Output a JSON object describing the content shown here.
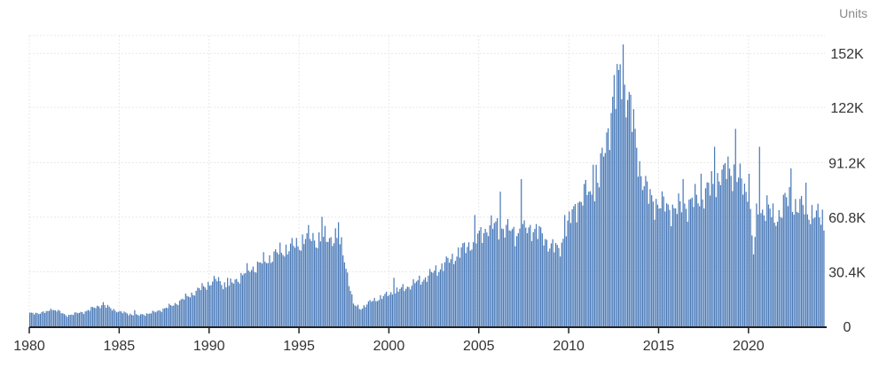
{
  "chart_data": {
    "type": "bar",
    "title": "",
    "units_label": "Units",
    "frequency": "monthly",
    "xlim": [
      "1980-01",
      "2024-03"
    ],
    "ylim": [
      0,
      162000
    ],
    "x_ticks": [
      "1980",
      "1985",
      "1990",
      "1995",
      "2000",
      "2005",
      "2010",
      "2015",
      "2020"
    ],
    "y_ticks": [
      {
        "value": 0,
        "label": "0"
      },
      {
        "value": 30400,
        "label": "30.4K"
      },
      {
        "value": 60800,
        "label": "60.8K"
      },
      {
        "value": 91200,
        "label": "91.2K"
      },
      {
        "value": 122000,
        "label": "122K"
      },
      {
        "value": 152000,
        "label": "152K"
      }
    ],
    "grid": true,
    "y_axis_side": "right",
    "series": [
      {
        "color": "#4a7ab9",
        "points": [
          [
            "1980-01",
            7000
          ],
          [
            "1981-01",
            8000
          ],
          [
            "1981-06",
            9500
          ],
          [
            "1982-01",
            6000
          ],
          [
            "1983-01",
            8000
          ],
          [
            "1984-01",
            12000
          ],
          [
            "1985-01",
            8000
          ],
          [
            "1986-01",
            6000
          ],
          [
            "1987-01",
            8000
          ],
          [
            "1988-01",
            12000
          ],
          [
            "1989-01",
            18000
          ],
          [
            "1990-01",
            24000
          ],
          [
            "1990-06",
            26000
          ],
          [
            "1991-01",
            22000
          ],
          [
            "1992-01",
            30000
          ],
          [
            "1993-01",
            36000
          ],
          [
            "1994-01",
            42000
          ],
          [
            "1995-01",
            46000
          ],
          [
            "1995-06",
            50000
          ],
          [
            "1996-01",
            48000
          ],
          [
            "1997-01",
            50000
          ],
          [
            "1997-06",
            42000
          ],
          [
            "1998-01",
            12000
          ],
          [
            "1998-06",
            10000
          ],
          [
            "1999-01",
            14000
          ],
          [
            "2000-01",
            18000
          ],
          [
            "2001-01",
            22000
          ],
          [
            "2002-01",
            27000
          ],
          [
            "2003-01",
            34000
          ],
          [
            "2004-01",
            42000
          ],
          [
            "2005-01",
            50000
          ],
          [
            "2005-06",
            55000
          ],
          [
            "2006-01",
            56000
          ],
          [
            "2007-01",
            52000
          ],
          [
            "2008-01",
            55000
          ],
          [
            "2009-01",
            45000
          ],
          [
            "2009-06",
            42000
          ],
          [
            "2010-01",
            58000
          ],
          [
            "2010-06",
            68000
          ],
          [
            "2011-01",
            75000
          ],
          [
            "2011-06",
            70000
          ],
          [
            "2012-01",
            100000
          ],
          [
            "2012-06",
            125000
          ],
          [
            "2013-01",
            140000
          ],
          [
            "2013-06",
            120000
          ],
          [
            "2014-01",
            85000
          ],
          [
            "2014-06",
            72000
          ],
          [
            "2015-01",
            68000
          ],
          [
            "2016-01",
            65000
          ],
          [
            "2017-01",
            70000
          ],
          [
            "2018-01",
            78000
          ],
          [
            "2018-06",
            85000
          ],
          [
            "2019-01",
            88000
          ],
          [
            "2019-06",
            82000
          ],
          [
            "2020-01",
            72000
          ],
          [
            "2020-04",
            40000
          ],
          [
            "2020-06",
            60000
          ],
          [
            "2021-01",
            68000
          ],
          [
            "2021-06",
            58000
          ],
          [
            "2022-01",
            70000
          ],
          [
            "2023-01",
            66000
          ],
          [
            "2024-01",
            60000
          ],
          [
            "2024-03",
            55000
          ]
        ],
        "spikes": [
          [
            "1981-03",
            9800
          ],
          [
            "1984-02",
            13500
          ],
          [
            "1985-11",
            9000
          ],
          [
            "1991-01",
            27000
          ],
          [
            "1995-10",
            52000
          ],
          [
            "1996-04",
            61000
          ],
          [
            "1997-03",
            58000
          ],
          [
            "2000-04",
            27000
          ],
          [
            "2004-10",
            62000
          ],
          [
            "2006-03",
            75000
          ],
          [
            "2007-05",
            82000
          ],
          [
            "2009-10",
            62000
          ],
          [
            "2011-05",
            90000
          ],
          [
            "2011-07",
            90000
          ],
          [
            "2012-02",
            108000
          ],
          [
            "2012-07",
            140000
          ],
          [
            "2012-11",
            146000
          ],
          [
            "2013-01",
            157000
          ],
          [
            "2016-05",
            82000
          ],
          [
            "2017-05",
            85000
          ],
          [
            "2018-02",
            100000
          ],
          [
            "2018-08",
            90000
          ],
          [
            "2019-04",
            110000
          ],
          [
            "2020-01",
            85000
          ],
          [
            "2020-08",
            100000
          ],
          [
            "2022-05",
            88000
          ],
          [
            "2023-03",
            80000
          ],
          [
            "2024-02",
            65000
          ]
        ]
      }
    ]
  }
}
